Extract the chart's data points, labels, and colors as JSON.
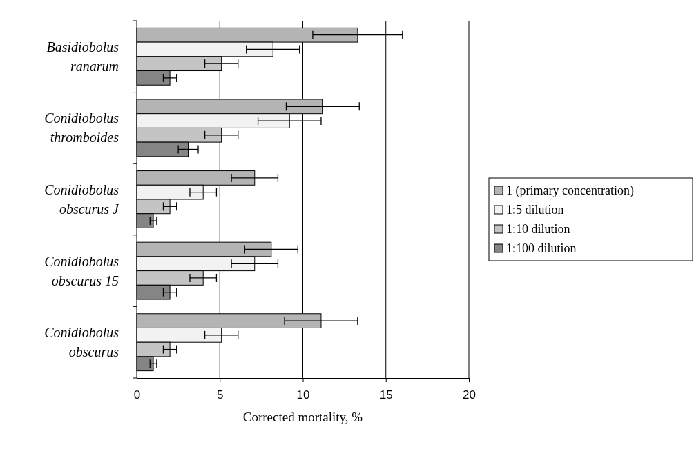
{
  "chart_data": {
    "type": "bar",
    "orientation": "horizontal",
    "xlabel": "Corrected mortality, %",
    "categories": [
      "Basidiobolus ranarum",
      "Conidiobolus thromboides",
      "Conidiobolus obscurus J",
      "Conidiobolus obscurus 15",
      "Conidiobolus obscurus"
    ],
    "series": [
      {
        "name": "1 (primary concentration)",
        "color": "#b4b4b4",
        "values": [
          13.3,
          11.2,
          7.1,
          8.1,
          11.1
        ],
        "errors": [
          2.7,
          2.2,
          1.4,
          1.6,
          2.2
        ]
      },
      {
        "name": "1:5 dilution",
        "color": "#f2f2f2",
        "values": [
          8.2,
          9.2,
          4.0,
          7.1,
          5.1
        ],
        "errors": [
          1.6,
          1.9,
          0.8,
          1.4,
          1.0
        ]
      },
      {
        "name": "1:10 dilution",
        "color": "#c4c4c4",
        "values": [
          5.1,
          5.1,
          2.0,
          4.0,
          2.0
        ],
        "errors": [
          1.0,
          1.0,
          0.4,
          0.8,
          0.4
        ]
      },
      {
        "name": "1:100 dilution",
        "color": "#858585",
        "values": [
          2.0,
          3.1,
          1.0,
          2.0,
          1.0
        ],
        "errors": [
          0.4,
          0.6,
          0.2,
          0.4,
          0.2
        ]
      }
    ],
    "xlim": [
      0,
      20
    ],
    "xticks": [
      0,
      5,
      10,
      15,
      20
    ],
    "grid": "x",
    "legend": "right"
  }
}
